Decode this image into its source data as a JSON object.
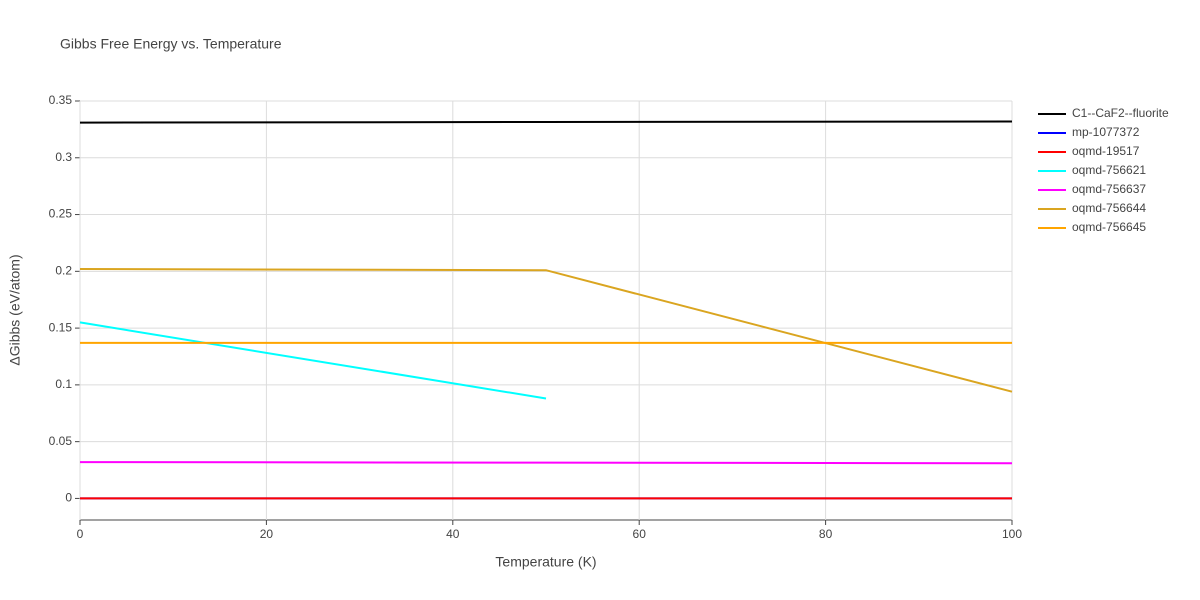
{
  "chart_data": {
    "type": "line",
    "title": "Gibbs Free Energy vs. Temperature",
    "x_label": "Temperature (K)",
    "y_label": "ΔGibbs (eV/atom)",
    "xlim": [
      0,
      100
    ],
    "xticks": [
      0,
      20,
      40,
      60,
      80,
      100
    ],
    "ylim": [
      -0.019,
      0.35
    ],
    "yticks": [
      0,
      0.05,
      0.1,
      0.15,
      0.2,
      0.25,
      0.3,
      0.35
    ],
    "grid": true,
    "legend": "right",
    "series": [
      {
        "name": "C1--CaF2--fluorite",
        "color": "#000000",
        "x": [
          0,
          50,
          100
        ],
        "values": [
          0.331,
          0.3315,
          0.332
        ]
      },
      {
        "name": "mp-1077372",
        "color": "#0000ff",
        "x": [
          0,
          50,
          100
        ],
        "values": [
          0,
          0,
          0
        ]
      },
      {
        "name": "oqmd-19517",
        "color": "#ff0000",
        "x": [
          0,
          50,
          100
        ],
        "values": [
          0,
          0,
          0
        ]
      },
      {
        "name": "oqmd-756621",
        "color": "#00ffff",
        "x": [
          0,
          50
        ],
        "values": [
          0.155,
          0.088
        ]
      },
      {
        "name": "oqmd-756637",
        "color": "#ff00ff",
        "x": [
          0,
          50,
          100
        ],
        "values": [
          0.032,
          0.0315,
          0.031
        ]
      },
      {
        "name": "oqmd-756644",
        "color": "#daa520",
        "x": [
          0,
          50,
          100
        ],
        "values": [
          0.202,
          0.201,
          0.094
        ]
      },
      {
        "name": "oqmd-756645",
        "color": "#ffa500",
        "x": [
          0,
          50,
          100
        ],
        "values": [
          0.137,
          0.137,
          0.137
        ]
      }
    ]
  }
}
